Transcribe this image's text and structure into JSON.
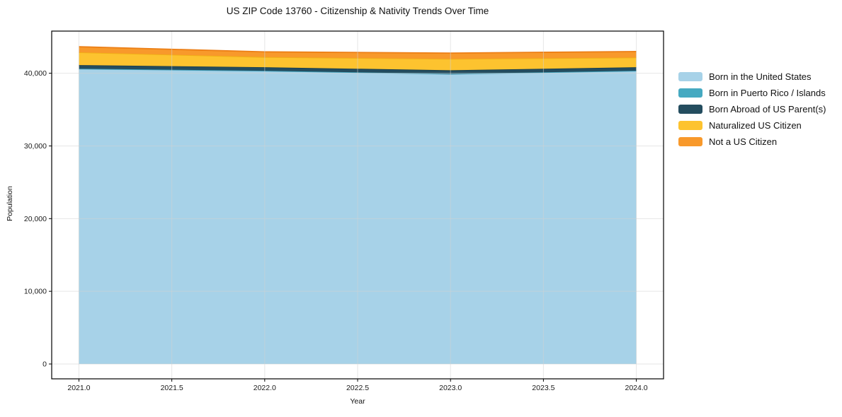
{
  "chart_data": {
    "type": "area",
    "stacked": true,
    "title": "US ZIP Code 13760 - Citizenship & Nativity Trends Over Time",
    "xlabel": "Year",
    "ylabel": "Population",
    "x": [
      2021,
      2022,
      2023,
      2024
    ],
    "series": [
      {
        "name": "Born in the United States",
        "color": "#a7d2e8",
        "line": "#97c8e1",
        "values": [
          40600,
          40310,
          39890,
          40310
        ]
      },
      {
        "name": "Born in Puerto Rico / Islands",
        "color": "#45a9c1",
        "line": "#3b9db6",
        "values": [
          30,
          30,
          30,
          30
        ]
      },
      {
        "name": "Born Abroad of US Parent(s)",
        "color": "#244d5f",
        "line": "#1b3e4e",
        "values": [
          490,
          490,
          490,
          490
        ]
      },
      {
        "name": "Naturalized US Citizen",
        "color": "#fdc32f",
        "line": "#f0b015",
        "values": [
          1750,
          1390,
          1560,
          1330
        ]
      },
      {
        "name": "Not a US Citizen",
        "color": "#f8992b",
        "line": "#ec7f16",
        "values": [
          780,
          720,
          810,
          830
        ]
      }
    ],
    "x_ticks": {
      "values": [
        2021.0,
        2021.5,
        2022.0,
        2022.5,
        2023.0,
        2023.5,
        2024.0
      ],
      "labels": [
        "2021.0",
        "2021.5",
        "2022.0",
        "2022.5",
        "2023.0",
        "2023.5",
        "2024.0"
      ]
    },
    "y_ticks": {
      "values": [
        0,
        10000,
        20000,
        30000,
        40000
      ],
      "labels": [
        "0",
        "10,000",
        "20,000",
        "30,000",
        "40,000"
      ]
    },
    "xlim": [
      2020.8535,
      2024.1465
    ],
    "ylim": [
      -2042,
      45800
    ],
    "grid": true,
    "grid_above_data": true,
    "legend_position": "right-outside",
    "background": "#ffffff",
    "spine_color": "#000000",
    "tick_label_color": "#1a1a1a"
  }
}
